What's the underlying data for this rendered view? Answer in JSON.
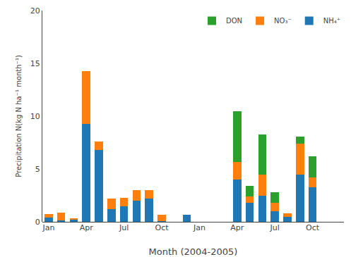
{
  "chart_data": {
    "type": "bar",
    "stacked": true,
    "xlabel": "Month (2004-2005)",
    "ylabel": "Precipitation N(kg N ha⁻¹ month⁻¹)",
    "categories": [
      "Jan",
      null,
      null,
      "Apr",
      null,
      null,
      "Jul",
      null,
      null,
      "Oct",
      null,
      null,
      "Jan",
      null,
      null,
      "Apr",
      null,
      null,
      "Jul",
      null,
      null,
      "Oct",
      null,
      null
    ],
    "series": [
      {
        "name": "NH₄⁺",
        "values": [
          0.4,
          0.15,
          0.25,
          9.3,
          6.8,
          1.2,
          1.5,
          2.0,
          2.2,
          0.1,
          0.0,
          0.7,
          0.0,
          0.0,
          0.0,
          4.0,
          1.8,
          2.5,
          1.0,
          0.5,
          4.5,
          3.3,
          0.0,
          0.0
        ]
      },
      {
        "name": "NO₃⁻",
        "values": [
          0.35,
          0.7,
          0.1,
          5.0,
          0.8,
          1.0,
          0.8,
          1.0,
          0.8,
          0.6,
          0.0,
          0.0,
          0.0,
          0.0,
          0.0,
          1.7,
          0.6,
          2.0,
          0.8,
          0.3,
          2.9,
          0.9,
          0.0,
          0.0
        ]
      },
      {
        "name": "DON",
        "values": [
          0.0,
          0.0,
          0.0,
          0.0,
          0.0,
          0.0,
          0.0,
          0.0,
          0.0,
          0.0,
          0.0,
          0.0,
          0.0,
          0.0,
          0.0,
          4.8,
          1.0,
          3.8,
          1.0,
          0.0,
          0.7,
          2.0,
          0.0,
          0.0
        ]
      }
    ],
    "ylim": [
      0,
      20
    ],
    "yticks": [
      0,
      5,
      10,
      15,
      20
    ],
    "grid": false,
    "legend": "upper right"
  }
}
